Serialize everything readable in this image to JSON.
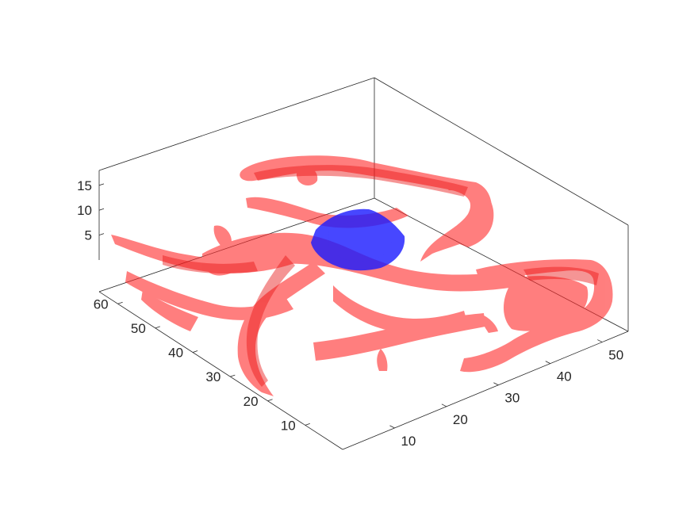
{
  "chart_data": {
    "type": "3d-isosurface",
    "title": "",
    "xlabel": "",
    "ylabel": "",
    "zlabel": "",
    "xlim": [
      0,
      55
    ],
    "ylim": [
      0,
      65
    ],
    "zlim": [
      0,
      18
    ],
    "grid": false,
    "x_ticks": [
      "10",
      "20",
      "30",
      "40",
      "50"
    ],
    "y_ticks": [
      "10",
      "20",
      "30",
      "40",
      "50",
      "60"
    ],
    "z_ticks": [
      "5",
      "10",
      "15"
    ],
    "colors": {
      "vessels": "#ff0000",
      "core": "#0000ff",
      "axes": "#262626"
    }
  }
}
